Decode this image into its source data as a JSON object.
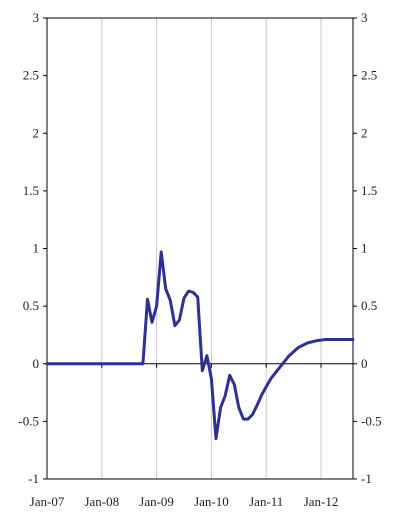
{
  "chart_data": {
    "type": "line",
    "title": "",
    "xlabel": "",
    "ylabel": "",
    "ylim": [
      -1,
      3
    ],
    "y_ticks": [
      -1,
      -0.5,
      0,
      0.5,
      1,
      1.5,
      2,
      2.5,
      3
    ],
    "y_tick_labels_left": [
      "-1",
      "-0.5",
      "0",
      "0.5",
      "1",
      "1.5",
      "2",
      "2.5",
      "3"
    ],
    "y_tick_labels_right": [
      "-1",
      "-0.5",
      "0",
      "0.5",
      "1",
      "1.5",
      "2",
      "2.5",
      "3"
    ],
    "x_ticks": [
      "2007-01",
      "2008-01",
      "2009-01",
      "2010-01",
      "2011-01",
      "2012-01"
    ],
    "x_tick_labels": [
      "Jan-07",
      "Jan-08",
      "Jan-09",
      "Jan-10",
      "Jan-11",
      "Jan-12"
    ],
    "x_range": [
      "2007-01",
      "2012-08"
    ],
    "grid": {
      "vertical": true,
      "horizontal": false
    },
    "legend": "none",
    "series": [
      {
        "color": "#2e3192",
        "x": [
          "2007-01",
          "2008-01",
          "2008-10",
          "2008-11",
          "2008-12",
          "2009-01",
          "2009-02",
          "2009-03",
          "2009-04",
          "2009-05",
          "2009-06",
          "2009-07",
          "2009-08",
          "2009-09",
          "2009-10",
          "2009-11",
          "2009-12",
          "2010-01",
          "2010-02",
          "2010-03",
          "2010-04",
          "2010-05",
          "2010-06",
          "2010-07",
          "2010-08",
          "2010-09",
          "2010-10",
          "2010-11",
          "2010-12",
          "2011-01",
          "2011-02",
          "2011-04",
          "2011-06",
          "2011-08",
          "2011-10",
          "2011-12",
          "2012-02",
          "2012-04",
          "2012-06",
          "2012-08"
        ],
        "y": [
          0,
          0,
          0,
          0.56,
          0.36,
          0.5,
          0.97,
          0.65,
          0.55,
          0.33,
          0.38,
          0.57,
          0.63,
          0.62,
          0.58,
          -0.06,
          0.07,
          -0.13,
          -0.65,
          -0.38,
          -0.28,
          -0.1,
          -0.18,
          -0.38,
          -0.48,
          -0.48,
          -0.44,
          -0.36,
          -0.27,
          -0.2,
          -0.13,
          -0.03,
          0.07,
          0.14,
          0.18,
          0.2,
          0.21,
          0.21,
          0.21,
          0.21
        ]
      }
    ]
  }
}
